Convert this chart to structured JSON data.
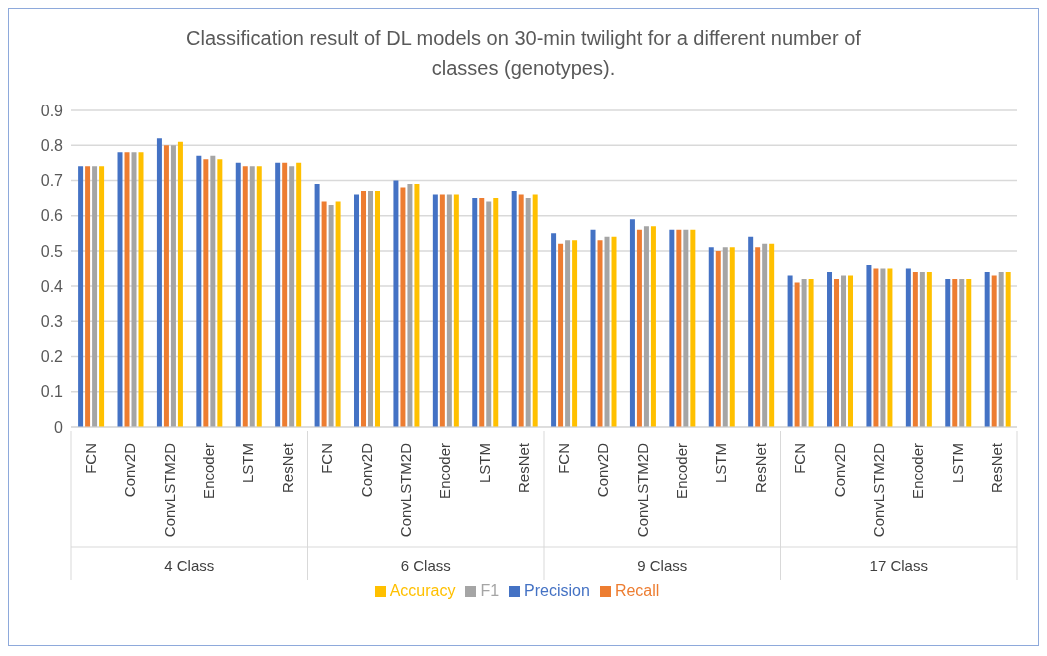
{
  "chart_data": {
    "type": "bar",
    "title": "Classification result of DL models on 30-min twilight for a different number of classes (genotypes).",
    "categories": [
      "FCN",
      "Conv2D",
      "ConvLSTM2D",
      "Encoder",
      "LSTM",
      "ResNet",
      "FCN",
      "Conv2D",
      "ConvLSTM2D",
      "Encoder",
      "LSTM",
      "ResNet",
      "FCN",
      "Conv2D",
      "ConvLSTM2D",
      "Encoder",
      "LSTM",
      "ResNet",
      "FCN",
      "Conv2D",
      "ConvLSTM2D",
      "Encoder",
      "LSTM",
      "ResNet"
    ],
    "annotations": [
      "4 Class",
      "6 Class",
      "9 Class",
      "17 Class"
    ],
    "series": [
      {
        "name": "Precision",
        "color": "#4472c4",
        "values": [
          0.74,
          0.78,
          0.82,
          0.77,
          0.75,
          0.75,
          0.69,
          0.66,
          0.7,
          0.66,
          0.65,
          0.67,
          0.55,
          0.56,
          0.59,
          0.56,
          0.51,
          0.54,
          0.43,
          0.44,
          0.46,
          0.45,
          0.42,
          0.44
        ]
      },
      {
        "name": "Recall",
        "color": "#ed7d31",
        "values": [
          0.74,
          0.78,
          0.8,
          0.76,
          0.74,
          0.75,
          0.64,
          0.67,
          0.68,
          0.66,
          0.65,
          0.66,
          0.52,
          0.53,
          0.56,
          0.56,
          0.5,
          0.51,
          0.41,
          0.42,
          0.45,
          0.44,
          0.42,
          0.43
        ]
      },
      {
        "name": "F1",
        "color": "#a5a5a5",
        "values": [
          0.74,
          0.78,
          0.8,
          0.77,
          0.74,
          0.74,
          0.63,
          0.67,
          0.69,
          0.66,
          0.64,
          0.65,
          0.53,
          0.54,
          0.57,
          0.56,
          0.51,
          0.52,
          0.42,
          0.43,
          0.45,
          0.44,
          0.42,
          0.44
        ]
      },
      {
        "name": "Accuracy",
        "color": "#ffc000",
        "values": [
          0.74,
          0.78,
          0.81,
          0.76,
          0.74,
          0.75,
          0.64,
          0.67,
          0.69,
          0.66,
          0.65,
          0.66,
          0.53,
          0.54,
          0.57,
          0.56,
          0.51,
          0.52,
          0.42,
          0.43,
          0.45,
          0.44,
          0.42,
          0.44
        ]
      }
    ],
    "ylim": [
      0,
      0.9
    ],
    "yticks": [
      0,
      0.1,
      0.2,
      0.3,
      0.4,
      0.5,
      0.6,
      0.7,
      0.8,
      0.9
    ],
    "grid": "y",
    "legend": "bottom"
  }
}
